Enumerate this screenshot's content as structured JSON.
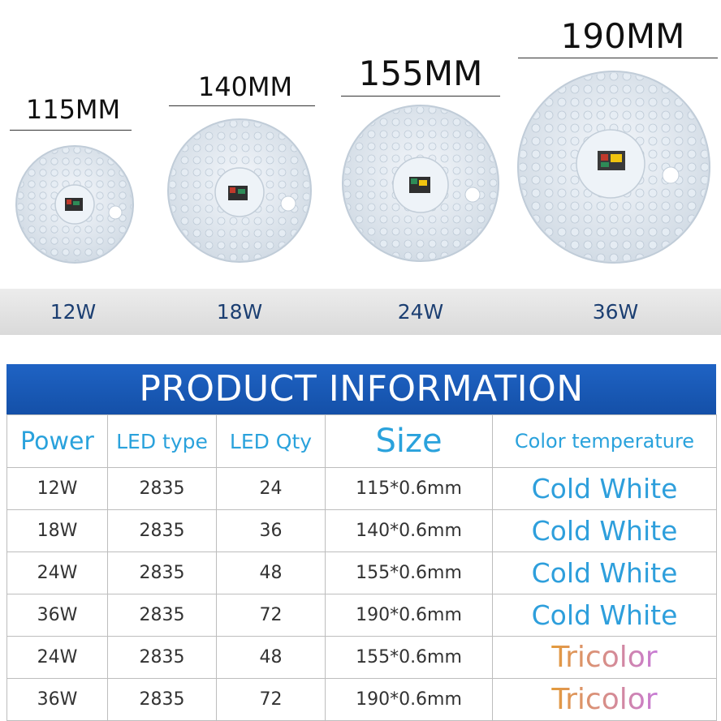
{
  "sizes": {
    "s115": "115MM",
    "s140": "140MM",
    "s155": "155MM",
    "s190": "190MM"
  },
  "watts": {
    "w12": "12W",
    "w18": "18W",
    "w24": "24W",
    "w36": "36W"
  },
  "banner": "PRODUCT INFORMATION",
  "table": {
    "headers": {
      "power": "Power",
      "led_type": "LED type",
      "led_qty": "LED Qty",
      "size": "Size",
      "color_temp": "Color temperature"
    },
    "rows": [
      {
        "power": "12W",
        "led_type": "2835",
        "led_qty": "24",
        "size": "115*0.6mm",
        "color": "Cold White"
      },
      {
        "power": "18W",
        "led_type": "2835",
        "led_qty": "36",
        "size": "140*0.6mm",
        "color": "Cold White"
      },
      {
        "power": "24W",
        "led_type": "2835",
        "led_qty": "48",
        "size": "155*0.6mm",
        "color": "Cold White"
      },
      {
        "power": "36W",
        "led_type": "2835",
        "led_qty": "72",
        "size": "190*0.6mm",
        "color": "Cold White"
      },
      {
        "power": "24W",
        "led_type": "2835",
        "led_qty": "48",
        "size": "155*0.6mm",
        "color": "Tricolor"
      },
      {
        "power": "36W",
        "led_type": "2835",
        "led_qty": "72",
        "size": "190*0.6mm",
        "color": "Tricolor"
      }
    ]
  },
  "colors": {
    "banner_blue": "#1a5bb8",
    "header_blue": "#2aa2dc",
    "watt_blue": "#1c3f72",
    "cold_white": "#2e9fdc",
    "tricolor_start": "#e39a3a",
    "tricolor_end": "#c77bd6"
  }
}
